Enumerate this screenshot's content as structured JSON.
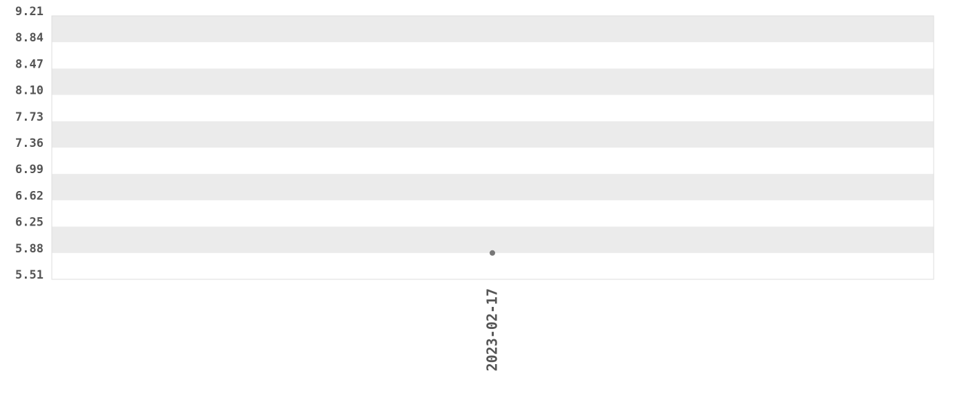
{
  "chart_data": {
    "type": "scatter",
    "title": "",
    "xlabel": "",
    "ylabel": "",
    "x_ticks": [
      "2023-02-17"
    ],
    "y_ticks": [
      "9.21",
      "8.84",
      "8.47",
      "8.10",
      "7.73",
      "7.36",
      "6.99",
      "6.62",
      "6.25",
      "5.88",
      "5.51"
    ],
    "ylim": [
      5.51,
      9.21
    ],
    "grid": "alternating horizontal bands",
    "points": [
      {
        "x": "2023-02-17",
        "y": 5.88
      }
    ],
    "colors": {
      "point": "#777777",
      "band": "#ebebeb",
      "border": "#dddddd",
      "text": "#555555"
    }
  }
}
